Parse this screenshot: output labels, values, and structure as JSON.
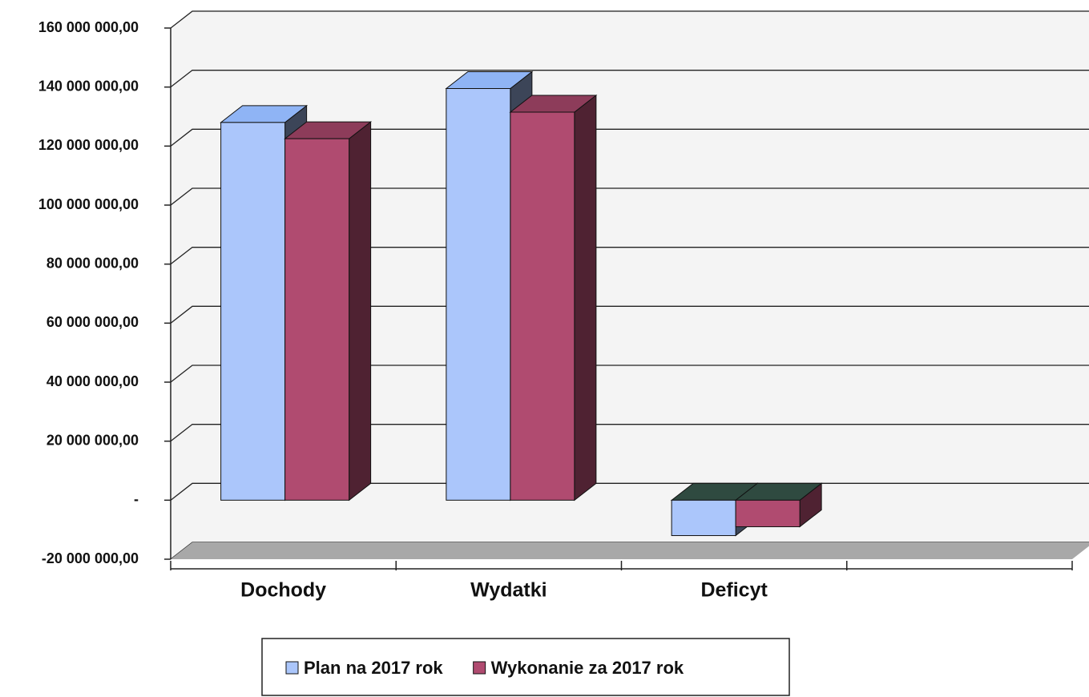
{
  "chart_data": {
    "type": "bar3d",
    "categories": [
      "Dochody",
      "Wydatki",
      "Deficyt"
    ],
    "series": [
      {
        "name": "Plan na 2017 rok",
        "color": "#abc6fb",
        "values": [
          128000000,
          139500000,
          -12000000
        ]
      },
      {
        "name": "Wykonanie za 2017 rok",
        "color": "#b04b70",
        "values": [
          122500000,
          131500000,
          -9000000
        ]
      }
    ],
    "ylim": [
      -20000000,
      160000000
    ],
    "yticks": [
      {
        "value": -20000000,
        "label": "-20 000 000,00"
      },
      {
        "value": 0,
        "label": "-"
      },
      {
        "value": 20000000,
        "label": "20 000 000,00"
      },
      {
        "value": 40000000,
        "label": "40 000 000,00"
      },
      {
        "value": 60000000,
        "label": "60 000 000,00"
      },
      {
        "value": 80000000,
        "label": "80 000 000,00"
      },
      {
        "value": 100000000,
        "label": "100 000 000,00"
      },
      {
        "value": 120000000,
        "label": "120 000 000,00"
      },
      {
        "value": 140000000,
        "label": "140 000 000,00"
      },
      {
        "value": 160000000,
        "label": "160 000 000,00"
      }
    ],
    "grid": true,
    "legend": "bottom"
  }
}
